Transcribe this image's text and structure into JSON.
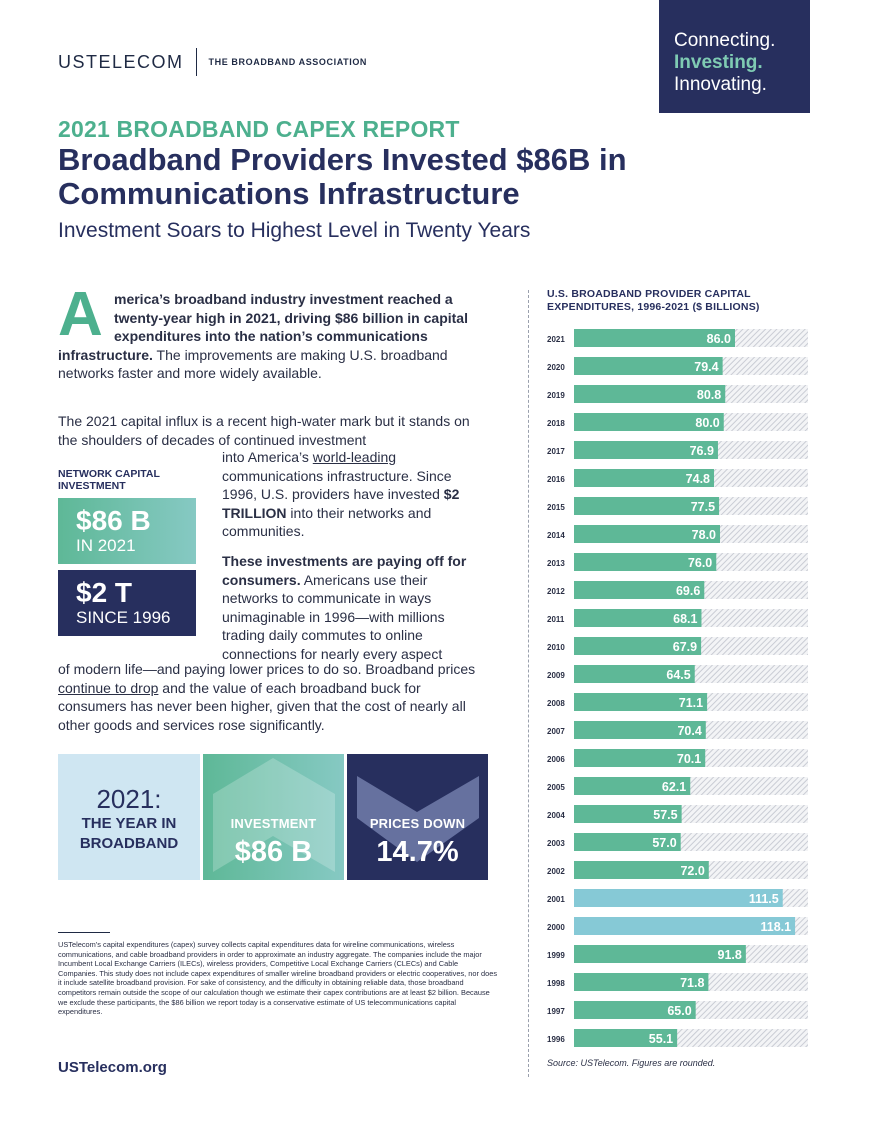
{
  "logo": {
    "wordmark": "USTELECOM",
    "tagline": "THE BROADBAND ASSOCIATION"
  },
  "promo": {
    "line1": "Connecting.",
    "line2": "Investing.",
    "line3": "Innovating."
  },
  "header": {
    "kicker": "2021 BROADBAND CAPEX REPORT",
    "headline": "Broadband Providers Invested $86B in Communications Infrastructure",
    "subhead": "Investment Soars to Highest Level in Twenty Years"
  },
  "intro": {
    "dropcap": "A",
    "bold": "merica’s broadband industry investment reached a twenty-year high in 2021, driving $86 billion in capital expenditures into the nation’s communications infrastructure.",
    "rest": " The improvements are making U.S. broadband networks faster and more widely available."
  },
  "para2": "The 2021 capital influx is a recent high-water mark but it stands on the shoulders of decades of continued investment",
  "para3": {
    "pre": "into America’s ",
    "link": "world-leading",
    "mid": " communications infrastructure. Since 1996, U.S. providers have invested ",
    "bold": "$2 TRILLION",
    "post": " into their networks and communities."
  },
  "para4": {
    "bold": "These investments are paying off for consumers.",
    "rest": " Americans use their networks to communicate in ways unimaginable in 1996—with millions trading daily commutes to online connections for nearly every aspect"
  },
  "para5": {
    "pre": "of modern life—and paying lower prices to do so. Broadband prices ",
    "link": "continue to drop",
    "post": " and the value of each broadband buck for consumers has never been higher, given that the cost of nearly all other goods and services rose significantly."
  },
  "stats": {
    "label": "NETWORK CAPITAL INVESTMENT",
    "box1_big": "$86 B",
    "box1_small": "IN 2021",
    "box2_big": "$2 T",
    "box2_small": "SINCE 1996"
  },
  "tiles": {
    "year_title": "2021:",
    "year_sub1": "THE YEAR IN",
    "year_sub2": "BROADBAND",
    "invest_caption": "INVESTMENT",
    "invest_value": "$86 B",
    "prices_caption": "PRICES DOWN",
    "prices_value": "14.7%"
  },
  "footnote": "USTelecom’s capital expenditures (capex) survey collects capital expenditures data for wireline communications, wireless communications, and cable broadband providers in order to approximate an industry aggregate. The companies include the major Incumbent Local Exchange Carriers (ILECs), wireless providers, Competitive Local Exchange Carriers (CLECs) and Cable Companies. This study does not include capex expenditures of smaller wireline broadband providers or electric cooperatives, nor does it include satellite broadband provision. For sake of consistency, and the difficulty in obtaining reliable data, those broadband competitors remain outside the scope of our calculation though we estimate their capex contributions are at least $2 billion. Because we exclude these participants, the $86 billion we report today is a conservative estimate of US telecommunications capital expenditures.",
  "site": "USTelecom.org",
  "chart_data": {
    "type": "bar",
    "orientation": "horizontal",
    "title": "U.S. BROADBAND PROVIDER CAPITAL EXPENDITURES, 1996-2021 ($ BILLIONS)",
    "source": "Source: USTelecom. Figures are rounded.",
    "categories": [
      "2021",
      "2020",
      "2019",
      "2018",
      "2017",
      "2016",
      "2015",
      "2014",
      "2013",
      "2012",
      "2011",
      "2010",
      "2009",
      "2008",
      "2007",
      "2006",
      "2005",
      "2004",
      "2003",
      "2002",
      "2001",
      "2000",
      "1999",
      "1998",
      "1997",
      "1996"
    ],
    "values": [
      86.0,
      79.4,
      80.8,
      80.0,
      76.9,
      74.8,
      77.5,
      78.0,
      76.0,
      69.6,
      68.1,
      67.9,
      64.5,
      71.1,
      70.4,
      70.1,
      62.1,
      57.5,
      57.0,
      72.0,
      111.5,
      118.1,
      91.8,
      71.8,
      65.0,
      55.1
    ],
    "value_labels": [
      "86.0",
      "79.4",
      "80.8",
      "80.0",
      "76.9",
      "74.8",
      "77.5",
      "78.0",
      "76.0",
      "69.6",
      "68.1",
      "67.9",
      "64.5",
      "71.1",
      "70.4",
      "70.1",
      "62.1",
      "57.5",
      "57.0",
      "72.0",
      "111.5",
      "118.1",
      "91.8",
      "71.8",
      "65.0",
      "55.1"
    ],
    "xlim": [
      0,
      125
    ],
    "colors": {
      "bar_green": "#5eb897",
      "bar_blue": "#86c9d6",
      "hatch": "#c9ccd4"
    },
    "grid": false,
    "legend": "none"
  }
}
